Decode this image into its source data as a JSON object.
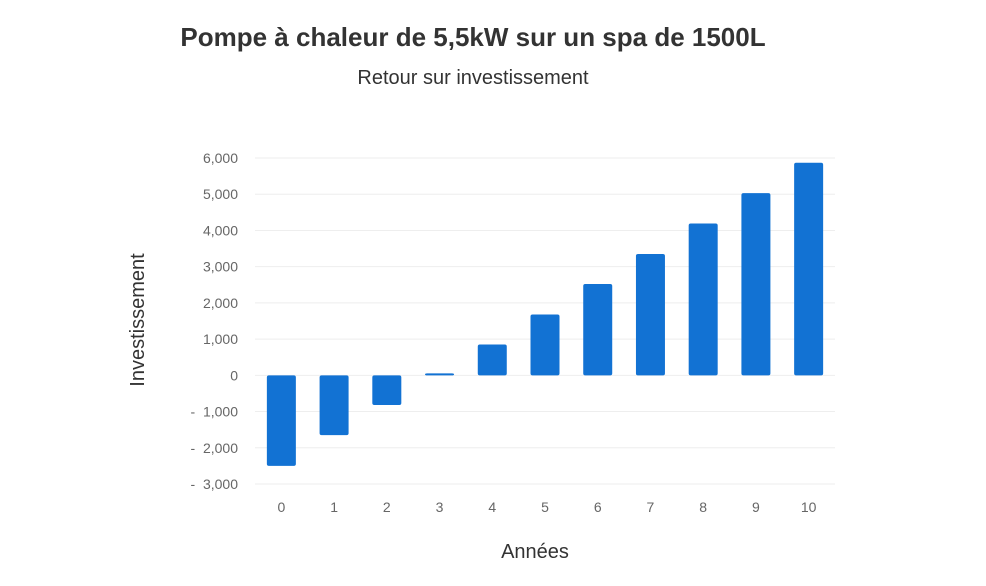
{
  "chart_data": {
    "type": "bar",
    "title": "Pompe à chaleur de 5,5kW sur un spa de 1500L",
    "subtitle": "Retour sur investissement",
    "xlabel": "Années",
    "ylabel": "Investissement",
    "categories": [
      "0",
      "1",
      "2",
      "3",
      "4",
      "5",
      "6",
      "7",
      "8",
      "9",
      "10"
    ],
    "values": [
      -2500,
      -1650,
      -820,
      50,
      850,
      1680,
      2520,
      3350,
      4190,
      5030,
      5870
    ],
    "ylim": [
      -3000,
      6000
    ],
    "yticks": [
      6000,
      5000,
      4000,
      3000,
      2000,
      1000,
      0,
      -1000,
      -2000,
      -3000
    ],
    "ytick_labels": [
      "6,000",
      "5,000",
      "4,000",
      "3,000",
      "2,000",
      "1,000",
      "0",
      "-  1,000",
      "-  2,000",
      "-  3,000"
    ],
    "grid": true,
    "legend": "none",
    "bar_color": "#1272D3",
    "grid_color": "#EEEEEE"
  }
}
